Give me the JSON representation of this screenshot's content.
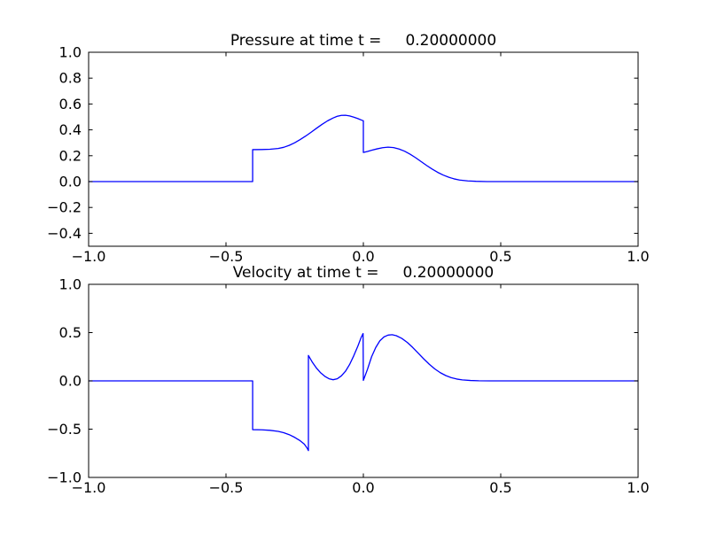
{
  "figure": {
    "background": "#ffffff",
    "axis_color": "#000000",
    "line_color": "#0000ff"
  },
  "chart_data": [
    {
      "type": "line",
      "name": "pressure",
      "title": "Pressure at time t =     0.20000000",
      "xlabel": "",
      "ylabel": "",
      "xlim": [
        -1.0,
        1.0
      ],
      "ylim": [
        -0.5,
        1.0
      ],
      "xticks": [
        -1.0,
        -0.5,
        0.0,
        0.5,
        1.0
      ],
      "xtick_labels": [
        "−1.0",
        "−0.5",
        "0.0",
        "0.5",
        "1.0"
      ],
      "yticks": [
        1.0,
        0.8,
        0.6,
        0.4,
        0.2,
        0.0,
        -0.2,
        -0.4
      ],
      "ytick_labels": [
        "1.0",
        "0.8",
        "0.6",
        "0.4",
        "0.2",
        "0.0",
        "−0.2",
        "−0.4"
      ],
      "grid": false,
      "legend": null,
      "series": [
        {
          "name": "pressure",
          "color": "#0000ff",
          "points": [
            [
              -1.0,
              0.0
            ],
            [
              -0.403,
              0.0
            ],
            [
              -0.403,
              0.247
            ],
            [
              -0.37,
              0.248
            ],
            [
              -0.34,
              0.25
            ],
            [
              -0.31,
              0.256
            ],
            [
              -0.29,
              0.265
            ],
            [
              -0.27,
              0.28
            ],
            [
              -0.25,
              0.3
            ],
            [
              -0.23,
              0.325
            ],
            [
              -0.21,
              0.352
            ],
            [
              -0.19,
              0.382
            ],
            [
              -0.17,
              0.413
            ],
            [
              -0.15,
              0.443
            ],
            [
              -0.13,
              0.47
            ],
            [
              -0.11,
              0.492
            ],
            [
              -0.095,
              0.505
            ],
            [
              -0.08,
              0.512
            ],
            [
              -0.065,
              0.513
            ],
            [
              -0.05,
              0.508
            ],
            [
              -0.035,
              0.498
            ],
            [
              -0.02,
              0.487
            ],
            [
              -0.005,
              0.474
            ],
            [
              0.0,
              0.47
            ],
            [
              0.0,
              0.225
            ],
            [
              0.015,
              0.233
            ],
            [
              0.03,
              0.242
            ],
            [
              0.05,
              0.253
            ],
            [
              0.07,
              0.262
            ],
            [
              0.09,
              0.266
            ],
            [
              0.11,
              0.263
            ],
            [
              0.13,
              0.252
            ],
            [
              0.15,
              0.235
            ],
            [
              0.17,
              0.212
            ],
            [
              0.19,
              0.185
            ],
            [
              0.21,
              0.155
            ],
            [
              0.23,
              0.125
            ],
            [
              0.25,
              0.097
            ],
            [
              0.27,
              0.072
            ],
            [
              0.29,
              0.051
            ],
            [
              0.31,
              0.034
            ],
            [
              0.33,
              0.021
            ],
            [
              0.35,
              0.012
            ],
            [
              0.38,
              0.005
            ],
            [
              0.41,
              0.002
            ],
            [
              0.45,
              0.0
            ],
            [
              1.0,
              0.0
            ]
          ]
        }
      ]
    },
    {
      "type": "line",
      "name": "velocity",
      "title": "Velocity at time t =     0.20000000",
      "xlabel": "",
      "ylabel": "",
      "xlim": [
        -1.0,
        1.0
      ],
      "ylim": [
        -1.0,
        1.0
      ],
      "xticks": [
        -1.0,
        -0.5,
        0.0,
        0.5,
        1.0
      ],
      "xtick_labels": [
        "−1.0",
        "−0.5",
        "0.0",
        "0.5",
        "1.0"
      ],
      "yticks": [
        1.0,
        0.5,
        0.0,
        -0.5,
        -1.0
      ],
      "ytick_labels": [
        "1.0",
        "0.5",
        "0.0",
        "−0.5",
        "−1.0"
      ],
      "grid": false,
      "legend": null,
      "series": [
        {
          "name": "velocity",
          "color": "#0000ff",
          "points": [
            [
              -1.0,
              0.0
            ],
            [
              -0.403,
              0.0
            ],
            [
              -0.403,
              -0.505
            ],
            [
              -0.37,
              -0.507
            ],
            [
              -0.34,
              -0.512
            ],
            [
              -0.31,
              -0.523
            ],
            [
              -0.29,
              -0.537
            ],
            [
              -0.27,
              -0.557
            ],
            [
              -0.25,
              -0.585
            ],
            [
              -0.23,
              -0.62
            ],
            [
              -0.215,
              -0.655
            ],
            [
              -0.205,
              -0.695
            ],
            [
              -0.2,
              -0.722
            ],
            [
              -0.2,
              0.263
            ],
            [
              -0.185,
              0.19
            ],
            [
              -0.17,
              0.13
            ],
            [
              -0.155,
              0.082
            ],
            [
              -0.14,
              0.047
            ],
            [
              -0.125,
              0.022
            ],
            [
              -0.11,
              0.012
            ],
            [
              -0.095,
              0.022
            ],
            [
              -0.08,
              0.052
            ],
            [
              -0.065,
              0.1
            ],
            [
              -0.05,
              0.17
            ],
            [
              -0.035,
              0.26
            ],
            [
              -0.02,
              0.36
            ],
            [
              -0.008,
              0.45
            ],
            [
              -0.001,
              0.49
            ],
            [
              0.0,
              0.005
            ],
            [
              0.015,
              0.12
            ],
            [
              0.03,
              0.25
            ],
            [
              0.045,
              0.345
            ],
            [
              0.06,
              0.415
            ],
            [
              0.075,
              0.455
            ],
            [
              0.09,
              0.474
            ],
            [
              0.105,
              0.478
            ],
            [
              0.12,
              0.468
            ],
            [
              0.14,
              0.44
            ],
            [
              0.16,
              0.398
            ],
            [
              0.18,
              0.345
            ],
            [
              0.2,
              0.286
            ],
            [
              0.22,
              0.227
            ],
            [
              0.24,
              0.172
            ],
            [
              0.26,
              0.124
            ],
            [
              0.28,
              0.085
            ],
            [
              0.3,
              0.055
            ],
            [
              0.32,
              0.033
            ],
            [
              0.34,
              0.019
            ],
            [
              0.36,
              0.01
            ],
            [
              0.39,
              0.004
            ],
            [
              0.42,
              0.001
            ],
            [
              0.46,
              0.0
            ],
            [
              1.0,
              0.0
            ]
          ]
        }
      ]
    }
  ]
}
